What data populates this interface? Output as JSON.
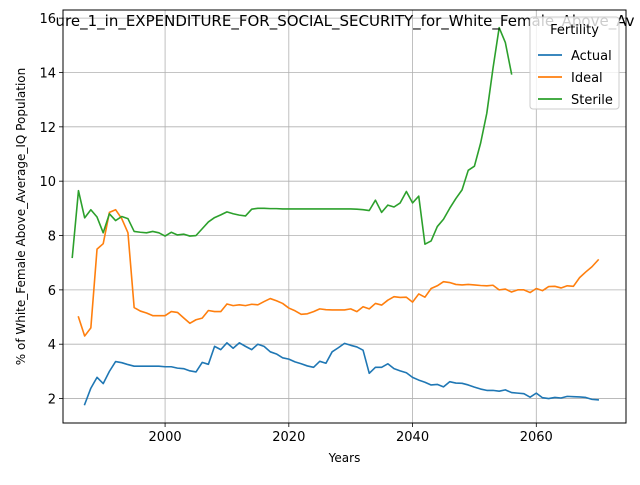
{
  "chart_data": {
    "type": "line",
    "title": "ure_1_in_EXPENDITURE_FOR_SOCIAL_SECURITY_for_White_Female_Above_Av",
    "xlabel": "Years",
    "ylabel": "% of White_Female Above_Average_IQ Population",
    "xlim": [
      1983.5,
      2074.5
    ],
    "ylim": [
      1.1,
      16.3
    ],
    "xticks": [
      2000,
      2020,
      2040,
      2060
    ],
    "yticks": [
      2,
      4,
      6,
      8,
      10,
      12,
      14,
      16
    ],
    "grid": true,
    "legend": {
      "title": "Fertility",
      "placement": "top-right"
    },
    "series": [
      {
        "name": "Actual",
        "color": "#1f77b4",
        "x": [
          1987,
          1988,
          1989,
          1990,
          1991,
          1992,
          1993,
          1994,
          1995,
          1996,
          1997,
          1998,
          1999,
          2000,
          2001,
          2002,
          2003,
          2004,
          2005,
          2006,
          2007,
          2008,
          2009,
          2010,
          2011,
          2012,
          2013,
          2014,
          2015,
          2016,
          2017,
          2018,
          2019,
          2020,
          2021,
          2022,
          2023,
          2024,
          2025,
          2026,
          2027,
          2028,
          2029,
          2030,
          2031,
          2032,
          2033,
          2034,
          2035,
          2036,
          2037,
          2038,
          2039,
          2040,
          2041,
          2042,
          2043,
          2044,
          2045,
          2046,
          2047,
          2048,
          2049,
          2050,
          2051,
          2052,
          2053,
          2054,
          2055,
          2056,
          2057,
          2058,
          2059,
          2060,
          2061,
          2062,
          2063,
          2064,
          2065,
          2066,
          2067,
          2068,
          2069,
          2070
        ],
        "y": [
          1.78,
          2.38,
          2.78,
          2.55,
          3.0,
          3.36,
          3.32,
          3.25,
          3.19,
          3.19,
          3.19,
          3.19,
          3.19,
          3.17,
          3.17,
          3.12,
          3.1,
          3.02,
          2.98,
          3.33,
          3.26,
          3.92,
          3.8,
          4.05,
          3.85,
          4.05,
          3.92,
          3.8,
          4.0,
          3.92,
          3.72,
          3.64,
          3.5,
          3.45,
          3.35,
          3.28,
          3.2,
          3.15,
          3.37,
          3.3,
          3.72,
          3.87,
          4.03,
          3.96,
          3.9,
          3.78,
          2.93,
          3.15,
          3.15,
          3.28,
          3.1,
          3.02,
          2.95,
          2.78,
          2.68,
          2.6,
          2.5,
          2.52,
          2.43,
          2.62,
          2.57,
          2.56,
          2.5,
          2.42,
          2.35,
          2.3,
          2.3,
          2.27,
          2.32,
          2.22,
          2.2,
          2.18,
          2.05,
          2.2,
          2.03,
          2.0,
          2.04,
          2.02,
          2.08,
          2.07,
          2.06,
          2.04,
          1.97,
          1.95
        ]
      },
      {
        "name": "Ideal",
        "color": "#ff7f0e",
        "x": [
          1986,
          1987,
          1988,
          1989,
          1990,
          1991,
          1992,
          1993,
          1994,
          1995,
          1996,
          1997,
          1998,
          1999,
          2000,
          2001,
          2002,
          2003,
          2004,
          2005,
          2006,
          2007,
          2008,
          2009,
          2010,
          2011,
          2012,
          2013,
          2014,
          2015,
          2016,
          2017,
          2018,
          2019,
          2020,
          2021,
          2022,
          2023,
          2024,
          2025,
          2026,
          2027,
          2028,
          2029,
          2030,
          2031,
          2032,
          2033,
          2034,
          2035,
          2036,
          2037,
          2038,
          2039,
          2040,
          2041,
          2042,
          2043,
          2044,
          2045,
          2046,
          2047,
          2048,
          2049,
          2050,
          2051,
          2052,
          2053,
          2054,
          2055,
          2056,
          2057,
          2058,
          2059,
          2060,
          2061,
          2062,
          2063,
          2064,
          2065,
          2066,
          2067,
          2068,
          2069,
          2070
        ],
        "y": [
          5.0,
          4.3,
          4.6,
          7.5,
          7.7,
          8.85,
          8.95,
          8.62,
          8.1,
          5.35,
          5.22,
          5.15,
          5.05,
          5.05,
          5.05,
          5.2,
          5.17,
          4.97,
          4.77,
          4.9,
          4.96,
          5.24,
          5.2,
          5.2,
          5.48,
          5.42,
          5.45,
          5.42,
          5.47,
          5.45,
          5.57,
          5.68,
          5.6,
          5.5,
          5.33,
          5.23,
          5.1,
          5.12,
          5.2,
          5.3,
          5.27,
          5.26,
          5.26,
          5.26,
          5.3,
          5.2,
          5.38,
          5.3,
          5.5,
          5.44,
          5.62,
          5.75,
          5.72,
          5.73,
          5.55,
          5.85,
          5.73,
          6.05,
          6.15,
          6.3,
          6.27,
          6.2,
          6.18,
          6.2,
          6.18,
          6.16,
          6.15,
          6.17,
          6.0,
          6.03,
          5.92,
          6.0,
          6.0,
          5.9,
          6.05,
          5.97,
          6.12,
          6.13,
          6.07,
          6.15,
          6.13,
          6.45,
          6.66,
          6.85,
          7.1
        ]
      },
      {
        "name": "Sterile",
        "color": "#2ca02c",
        "x": [
          1985,
          1986,
          1987,
          1988,
          1989,
          1990,
          1991,
          1992,
          1993,
          1994,
          1995,
          1996,
          1997,
          1998,
          1999,
          2000,
          2001,
          2002,
          2003,
          2004,
          2005,
          2006,
          2007,
          2008,
          2009,
          2010,
          2011,
          2012,
          2013,
          2014,
          2015,
          2016,
          2017,
          2018,
          2019,
          2020,
          2021,
          2022,
          2023,
          2024,
          2025,
          2026,
          2027,
          2028,
          2029,
          2030,
          2031,
          2032,
          2033,
          2034,
          2035,
          2036,
          2037,
          2038,
          2039,
          2040,
          2041,
          2042,
          2043,
          2044,
          2045,
          2046,
          2047,
          2048,
          2049,
          2050,
          2051,
          2052,
          2053,
          2054,
          2055,
          2056
        ],
        "y": [
          7.2,
          9.65,
          8.65,
          8.95,
          8.68,
          8.1,
          8.8,
          8.55,
          8.7,
          8.62,
          8.15,
          8.12,
          8.1,
          8.15,
          8.1,
          7.98,
          8.12,
          8.02,
          8.05,
          7.98,
          8.0,
          8.25,
          8.5,
          8.66,
          8.76,
          8.87,
          8.8,
          8.75,
          8.72,
          8.97,
          9.0,
          9.0,
          8.99,
          8.99,
          8.98,
          8.98,
          8.98,
          8.98,
          8.98,
          8.98,
          8.98,
          8.98,
          8.98,
          8.98,
          8.98,
          8.98,
          8.97,
          8.95,
          8.92,
          9.3,
          8.85,
          9.12,
          9.05,
          9.2,
          9.62,
          9.2,
          9.45,
          7.68,
          7.8,
          8.33,
          8.6,
          9.0,
          9.36,
          9.68,
          10.4,
          10.55,
          11.4,
          12.5,
          14.15,
          15.65,
          15.1,
          13.95
        ]
      }
    ]
  }
}
